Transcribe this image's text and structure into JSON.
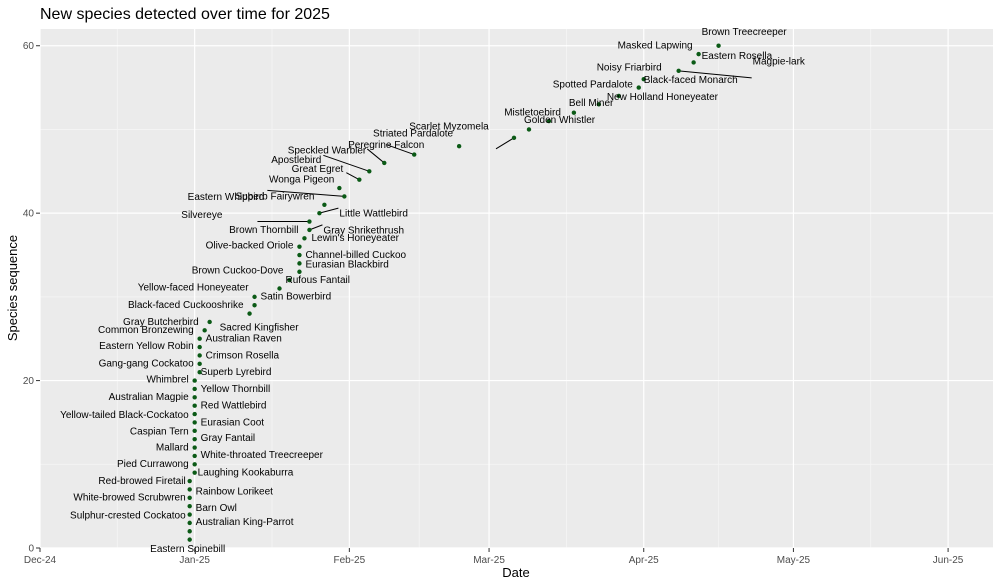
{
  "chart_data": {
    "type": "scatter",
    "title": "New species detected over time for 2025",
    "xlabel": "Date",
    "ylabel": "Species sequence",
    "xlim": [
      "2024-12-01",
      "2025-06-10"
    ],
    "ylim": [
      0,
      62
    ],
    "x_ticks": [
      {
        "date": "2024-12-01",
        "label": "Dec-24"
      },
      {
        "date": "2025-01-01",
        "label": "Jan-25"
      },
      {
        "date": "2025-02-01",
        "label": "Feb-25"
      },
      {
        "date": "2025-03-01",
        "label": "Mar-25"
      },
      {
        "date": "2025-04-01",
        "label": "Apr-25"
      },
      {
        "date": "2025-05-01",
        "label": "May-25"
      },
      {
        "date": "2025-06-01",
        "label": "Jun-25"
      }
    ],
    "y_ticks": [
      0,
      20,
      40,
      60
    ],
    "grid": true,
    "legend": "none",
    "point_color": "#0b5a16",
    "panel_color": "#ebebeb",
    "points": [
      {
        "seq": 1,
        "date": "2024-12-31",
        "name": "Eastern Spinebill"
      },
      {
        "seq": 2,
        "date": "2024-12-31",
        "name": "Australian King-Parrot"
      },
      {
        "seq": 3,
        "date": "2024-12-31",
        "name": "Sulphur-crested Cockatoo"
      },
      {
        "seq": 4,
        "date": "2024-12-31",
        "name": "Barn Owl"
      },
      {
        "seq": 5,
        "date": "2024-12-31",
        "name": "White-browed Scrubwren"
      },
      {
        "seq": 6,
        "date": "2024-12-31",
        "name": "Rainbow Lorikeet"
      },
      {
        "seq": 7,
        "date": "2024-12-31",
        "name": "Red-browed Firetail"
      },
      {
        "seq": 8,
        "date": "2024-12-31",
        "name": "Laughing Kookaburra"
      },
      {
        "seq": 9,
        "date": "2025-01-01",
        "name": "Pied Currawong"
      },
      {
        "seq": 10,
        "date": "2025-01-01",
        "name": "White-throated Treecreeper"
      },
      {
        "seq": 11,
        "date": "2025-01-01",
        "name": "Mallard"
      },
      {
        "seq": 12,
        "date": "2025-01-01",
        "name": "Gray Fantail"
      },
      {
        "seq": 13,
        "date": "2025-01-01",
        "name": "Caspian Tern"
      },
      {
        "seq": 14,
        "date": "2025-01-01",
        "name": "Eurasian Coot"
      },
      {
        "seq": 15,
        "date": "2025-01-01",
        "name": "Yellow-tailed Black-Cockatoo"
      },
      {
        "seq": 16,
        "date": "2025-01-01",
        "name": "Red Wattlebird"
      },
      {
        "seq": 17,
        "date": "2025-01-01",
        "name": "Australian Magpie"
      },
      {
        "seq": 18,
        "date": "2025-01-01",
        "name": "Yellow Thornbill"
      },
      {
        "seq": 19,
        "date": "2025-01-01",
        "name": "Whimbrel"
      },
      {
        "seq": 20,
        "date": "2025-01-01",
        "name": "Superb Lyrebird"
      },
      {
        "seq": 21,
        "date": "2025-01-02",
        "name": "Gang-gang Cockatoo"
      },
      {
        "seq": 22,
        "date": "2025-01-02",
        "name": "Crimson Rosella"
      },
      {
        "seq": 23,
        "date": "2025-01-02",
        "name": "Eastern Yellow Robin"
      },
      {
        "seq": 24,
        "date": "2025-01-02",
        "name": "Australian Raven"
      },
      {
        "seq": 25,
        "date": "2025-01-02",
        "name": "Common Bronzewing"
      },
      {
        "seq": 26,
        "date": "2025-01-03",
        "name": "Gray Butcherbird"
      },
      {
        "seq": 27,
        "date": "2025-01-04",
        "name": "Sacred Kingfisher"
      },
      {
        "seq": 28,
        "date": "2025-01-12",
        "name": "Black-faced Cuckooshrike"
      },
      {
        "seq": 29,
        "date": "2025-01-13",
        "name": "Satin Bowerbird"
      },
      {
        "seq": 30,
        "date": "2025-01-13",
        "name": "Yellow-faced Honeyeater"
      },
      {
        "seq": 31,
        "date": "2025-01-18",
        "name": "Rufous Fantail"
      },
      {
        "seq": 32,
        "date": "2025-01-20",
        "name": "Brown Cuckoo-Dove"
      },
      {
        "seq": 33,
        "date": "2025-01-22",
        "name": "Eurasian Blackbird"
      },
      {
        "seq": 34,
        "date": "2025-01-22",
        "name": "Channel-billed Cuckoo"
      },
      {
        "seq": 35,
        "date": "2025-01-22",
        "name": "Olive-backed Oriole"
      },
      {
        "seq": 36,
        "date": "2025-01-22",
        "name": "Lewin's Honeyeater"
      },
      {
        "seq": 37,
        "date": "2025-01-23",
        "name": "Brown Thornbill"
      },
      {
        "seq": 38,
        "date": "2025-01-24",
        "name": "Gray Shrikethrush"
      },
      {
        "seq": 39,
        "date": "2025-01-24",
        "name": "Silvereye"
      },
      {
        "seq": 40,
        "date": "2025-01-26",
        "name": "Little Wattlebird"
      },
      {
        "seq": 41,
        "date": "2025-01-27",
        "name": "Superb Fairywren"
      },
      {
        "seq": 42,
        "date": "2025-01-31",
        "name": "Eastern Whipbird"
      },
      {
        "seq": 43,
        "date": "2025-01-30",
        "name": "Wonga Pigeon"
      },
      {
        "seq": 44,
        "date": "2025-02-03",
        "name": "Great Egret"
      },
      {
        "seq": 45,
        "date": "2025-02-05",
        "name": "Apostlebird"
      },
      {
        "seq": 46,
        "date": "2025-02-08",
        "name": "Speckled Warbler"
      },
      {
        "seq": 47,
        "date": "2025-02-14",
        "name": "Peregrine Falcon"
      },
      {
        "seq": 48,
        "date": "2025-02-23",
        "name": "Striated Pardalote"
      },
      {
        "seq": 49,
        "date": "2025-03-06",
        "name": "Scarlet Myzomela"
      },
      {
        "seq": 50,
        "date": "2025-03-09",
        "name": "Golden Whistler"
      },
      {
        "seq": 51,
        "date": "2025-03-13",
        "name": "Mistletoebird"
      },
      {
        "seq": 52,
        "date": "2025-03-18",
        "name": "Bell Miner"
      },
      {
        "seq": 53,
        "date": "2025-03-23",
        "name": "New Holland Honeyeater"
      },
      {
        "seq": 54,
        "date": "2025-03-27",
        "name": "Spotted Pardalote"
      },
      {
        "seq": 55,
        "date": "2025-03-31",
        "name": "Black-faced Monarch"
      },
      {
        "seq": 56,
        "date": "2025-04-01",
        "name": "Noisy Friarbird"
      },
      {
        "seq": 57,
        "date": "2025-04-08",
        "name": "Magpie-lark"
      },
      {
        "seq": 58,
        "date": "2025-04-11",
        "name": "Eastern Rosella"
      },
      {
        "seq": 59,
        "date": "2025-04-12",
        "name": "Masked Lapwing"
      },
      {
        "seq": 60,
        "date": "2025-04-16",
        "name": "Brown Treecreeper"
      }
    ]
  }
}
